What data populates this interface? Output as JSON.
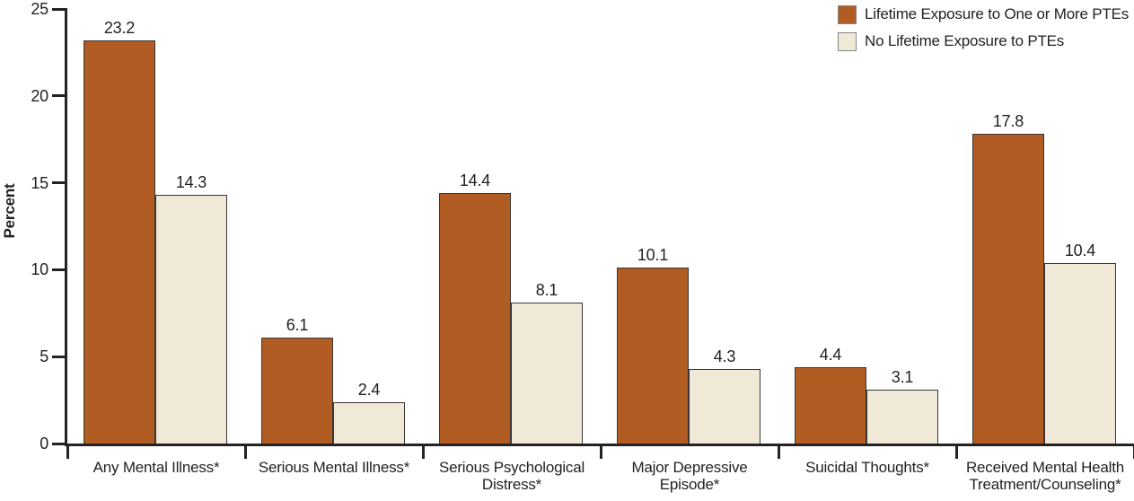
{
  "chart_data": {
    "type": "bar",
    "title": "",
    "xlabel": "",
    "ylabel": "Percent",
    "ylim": [
      0,
      25
    ],
    "yticks": [
      0,
      5,
      10,
      15,
      20,
      25
    ],
    "grid": false,
    "legend_position": "top-right",
    "bar_value_labels_shown": true,
    "categories": [
      "Any Mental Illness*",
      "Serious Mental Illness*",
      "Serious Psychological Distress*",
      "Major Depressive Episode*",
      "Suicidal Thoughts*",
      "Received Mental Health Treatment/Counseling*"
    ],
    "series": [
      {
        "name": "Lifetime Exposure to One or More PTEs",
        "color": "#b15c23",
        "values": [
          23.2,
          6.1,
          14.4,
          10.1,
          4.4,
          17.8
        ]
      },
      {
        "name": "No Lifetime Exposure to PTEs",
        "color": "#f0e9d7",
        "values": [
          14.3,
          2.4,
          8.1,
          4.3,
          3.1,
          10.4
        ]
      }
    ],
    "colors": {
      "axis": "#262223",
      "text": "#231f20",
      "bar_border": "#3a3637",
      "background": "#ffffff"
    }
  }
}
